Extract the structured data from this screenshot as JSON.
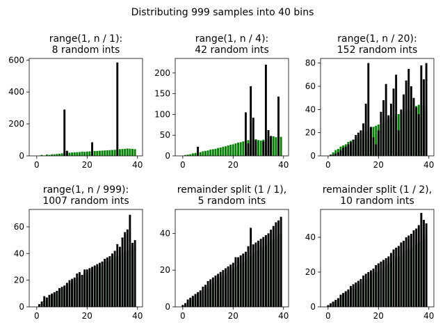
{
  "figure": {
    "title": "Distributing 999 samples into 40 bins"
  },
  "colors": {
    "primary": "#000000",
    "secondary": "#008000"
  },
  "chart_data": [
    {
      "type": "bar",
      "title_line1": "range(1, n / 1):",
      "title_line2": "8 random ints",
      "xlim": [
        -3,
        42
      ],
      "ylim": [
        0,
        610
      ],
      "xticks": [
        0,
        20,
        40
      ],
      "yticks": [
        0,
        200,
        400,
        600
      ],
      "series": [
        {
          "color": "secondary",
          "values": [
            0,
            2,
            6,
            2,
            8,
            6,
            10,
            10,
            12,
            13,
            16,
            18,
            20,
            20,
            21,
            22,
            23,
            24,
            26,
            25,
            27,
            28,
            29,
            30,
            31,
            32,
            33,
            34,
            35,
            36,
            37,
            38,
            40,
            42,
            43,
            44,
            46,
            45,
            44,
            42
          ]
        },
        {
          "color": "primary",
          "values": [
            0,
            0,
            0,
            0,
            0,
            0,
            0,
            0,
            0,
            0,
            0,
            290,
            32,
            0,
            0,
            0,
            0,
            0,
            0,
            0,
            0,
            0,
            85,
            0,
            0,
            0,
            0,
            0,
            0,
            0,
            0,
            0,
            585,
            0,
            0,
            0,
            0,
            0,
            0,
            0
          ]
        }
      ]
    },
    {
      "type": "bar",
      "title_line1": "range(1, n / 4):",
      "title_line2": "42 random ints",
      "xlim": [
        -3,
        42
      ],
      "ylim": [
        0,
        235
      ],
      "xticks": [
        0,
        20,
        40
      ],
      "yticks": [
        0,
        50,
        100,
        150,
        200
      ],
      "series": [
        {
          "color": "secondary",
          "values": [
            0,
            2,
            3,
            4,
            6,
            7,
            8,
            9,
            11,
            12,
            13,
            15,
            16,
            17,
            19,
            20,
            22,
            23,
            25,
            27,
            28,
            30,
            32,
            33,
            35,
            36,
            38,
            37,
            39,
            40,
            38,
            37,
            39,
            42,
            44,
            46,
            47,
            45,
            44,
            46
          ]
        },
        {
          "color": "primary",
          "values": [
            0,
            0,
            0,
            0,
            0,
            0,
            22,
            0,
            0,
            0,
            0,
            0,
            0,
            0,
            0,
            0,
            0,
            0,
            0,
            0,
            0,
            0,
            0,
            0,
            0,
            105,
            30,
            168,
            92,
            38,
            0,
            0,
            35,
            220,
            62,
            48,
            0,
            0,
            143,
            0
          ]
        }
      ]
    },
    {
      "type": "bar",
      "title_line1": "range(1, n / 20):",
      "title_line2": "152 random ints",
      "xlim": [
        -3,
        42
      ],
      "ylim": [
        0,
        84
      ],
      "xticks": [
        0,
        20,
        40
      ],
      "yticks": [
        0,
        20,
        40,
        60,
        80
      ],
      "series": [
        {
          "color": "secondary",
          "values": [
            0,
            1,
            3,
            5,
            6,
            8,
            9,
            10,
            12,
            13,
            14,
            15,
            17,
            18,
            20,
            21,
            22,
            24,
            25,
            26,
            27,
            28,
            30,
            31,
            32,
            33,
            34,
            35,
            36,
            37,
            38,
            39,
            40,
            41,
            42,
            43,
            44,
            44,
            42,
            40
          ]
        },
        {
          "color": "primary",
          "values": [
            0,
            1,
            1,
            2,
            3,
            5,
            7,
            8,
            10,
            12,
            14,
            18,
            20,
            22,
            28,
            45,
            80,
            25,
            16,
            10,
            22,
            38,
            48,
            62,
            35,
            45,
            58,
            70,
            22,
            40,
            53,
            65,
            75,
            60,
            50,
            42,
            36,
            78,
            66,
            80
          ]
        }
      ]
    },
    {
      "type": "bar",
      "title_line1": "range(1, n / 999):",
      "title_line2": "1007 random ints",
      "xlim": [
        -3,
        42
      ],
      "ylim": [
        0,
        73
      ],
      "xticks": [
        0,
        20,
        40
      ],
      "yticks": [
        0,
        20,
        40,
        60
      ],
      "series": [
        {
          "color": "secondary",
          "values": [
            0,
            2,
            3,
            5,
            6,
            8,
            9,
            10,
            12,
            13,
            14,
            15,
            16,
            17,
            19,
            20,
            22,
            23,
            24,
            25,
            26,
            27,
            28,
            29,
            30,
            31,
            32,
            33,
            34,
            35,
            36,
            37,
            38,
            39,
            40,
            41,
            42,
            43,
            44,
            45
          ]
        },
        {
          "color": "primary",
          "values": [
            0,
            2,
            4,
            8,
            7,
            9,
            10,
            11,
            12,
            14,
            15,
            16,
            18,
            20,
            21,
            22,
            25,
            26,
            24,
            28,
            28,
            29,
            30,
            31,
            32,
            33,
            34,
            36,
            37,
            38,
            40,
            42,
            47,
            45,
            52,
            56,
            58,
            69,
            48,
            50
          ]
        }
      ]
    },
    {
      "type": "bar",
      "title_line1": "remainder split (1 / 1),",
      "title_line2": "5 random ints",
      "xlim": [
        -3,
        42
      ],
      "ylim": [
        0,
        53
      ],
      "xticks": [
        0,
        20,
        40
      ],
      "yticks": [
        0,
        20,
        40
      ],
      "series": [
        {
          "color": "secondary",
          "values": [
            1,
            2,
            3,
            4,
            5,
            6,
            7,
            8,
            9,
            10,
            11,
            12,
            13,
            14,
            15,
            16,
            17,
            18,
            19,
            20,
            21,
            22,
            23,
            24,
            25,
            26,
            27,
            28,
            29,
            30,
            31,
            32,
            33,
            34,
            35,
            36,
            37,
            38,
            39,
            40
          ]
        },
        {
          "color": "primary",
          "values": [
            1,
            2,
            4,
            5,
            6,
            7,
            8,
            9,
            11,
            12,
            14,
            15,
            16,
            17,
            18,
            19,
            20,
            21,
            22,
            23,
            24,
            27,
            27,
            28,
            29,
            30,
            33,
            43,
            34,
            35,
            36,
            37,
            38,
            39,
            40,
            42,
            44,
            46,
            47,
            49
          ]
        }
      ]
    },
    {
      "type": "bar",
      "title_line1": "remainder split (1 / 2),",
      "title_line2": "10 random ints",
      "xlim": [
        -3,
        42
      ],
      "ylim": [
        0,
        56
      ],
      "xticks": [
        0,
        20,
        40
      ],
      "yticks": [
        0,
        20,
        40
      ],
      "series": [
        {
          "color": "secondary",
          "values": [
            1,
            2,
            3,
            4,
            5,
            6,
            7,
            8,
            9,
            10,
            11,
            12,
            13,
            14,
            15,
            16,
            17,
            18,
            19,
            20,
            21,
            22,
            23,
            24,
            25,
            26,
            27,
            28,
            29,
            30,
            31,
            32,
            33,
            34,
            35,
            36,
            37,
            38,
            39,
            40
          ]
        },
        {
          "color": "primary",
          "values": [
            1,
            2,
            3,
            4,
            5,
            7,
            8,
            9,
            10,
            12,
            13,
            14,
            15,
            16,
            18,
            19,
            20,
            21,
            22,
            24,
            25,
            26,
            27,
            28,
            29,
            31,
            33,
            34,
            35,
            37,
            38,
            40,
            41,
            42,
            44,
            45,
            47,
            54,
            50,
            48
          ]
        }
      ]
    }
  ]
}
